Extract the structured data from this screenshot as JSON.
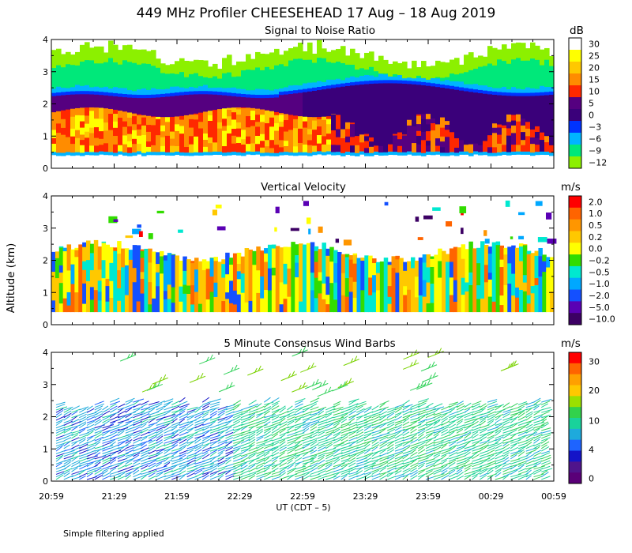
{
  "figure_title": "449 MHz Profiler CHEESEHEAD 17 Aug – 18 Aug 2019",
  "shared_y_axis_label": "Altitude (km)",
  "x_axis_label": "UT  (CDT – 5)",
  "x_tick_labels": [
    "20:59",
    "21:29",
    "21:59",
    "22:29",
    "22:59",
    "23:29",
    "23:59",
    "00:29",
    "00:59"
  ],
  "footnote": "Simple filtering applied",
  "chart_data": [
    {
      "type": "heatmap",
      "title": "Signal to Noise Ratio",
      "colorbar_unit": "dB",
      "colorbar_labels": [
        "30",
        "25",
        "20",
        "15",
        "10",
        "5",
        "0",
        "−3",
        "−6",
        "−9",
        "−12"
      ],
      "colorbar_colors": [
        "#ffffff",
        "#ffff00",
        "#ffc800",
        "#ff8c00",
        "#ff2800",
        "#550080",
        "#3a007a",
        "#0033ff",
        "#00b4ff",
        "#00e87a",
        "#8cf000"
      ],
      "ylim": [
        0,
        4
      ],
      "y_tick_labels": [
        "0",
        "1",
        "2",
        "3",
        "4"
      ],
      "time_range": [
        "20:59",
        "00:59"
      ],
      "layers_km": [
        {
          "from": 0.4,
          "to": 0.5,
          "dB": -6
        },
        {
          "from": 0.5,
          "to": 1.7,
          "dB": 15
        },
        {
          "from": 1.7,
          "to": 2.0,
          "dB": 5
        },
        {
          "from": 2.0,
          "to": 2.3,
          "dB": 0
        },
        {
          "from": 2.3,
          "to": 2.6,
          "dB": -6
        },
        {
          "from": 2.6,
          "to": 3.2,
          "dB": -9
        },
        {
          "from": 3.2,
          "to": 3.6,
          "dB": -12
        }
      ]
    },
    {
      "type": "heatmap",
      "title": "Vertical Velocity",
      "colorbar_unit": "m/s",
      "colorbar_labels": [
        "2.0",
        "1.0",
        "0.5",
        "0.2",
        "0.0",
        "−0.2",
        "−0.5",
        "−1.0",
        "−2.0",
        "−5.0",
        "−10.0"
      ],
      "colorbar_colors": [
        "#ff0000",
        "#ff6400",
        "#ff9600",
        "#ffc800",
        "#ffff00",
        "#32dc00",
        "#00e8d0",
        "#00a8ff",
        "#1450ff",
        "#5a00b4",
        "#3c0064"
      ],
      "ylim": [
        0,
        4
      ],
      "y_tick_labels": [
        "0",
        "1",
        "2",
        "3",
        "4"
      ],
      "time_range": [
        "20:59",
        "00:59"
      ],
      "data_top_km": 2.5,
      "dominant_values_m_s": [
        "0.0",
        "0.2",
        "−0.2",
        "−0.5",
        "−1.0"
      ]
    },
    {
      "type": "scatter",
      "title": "5 Minute Consensus Wind Barbs",
      "colorbar_unit": "m/s",
      "colorbar_labels": [
        "30",
        "20",
        "10",
        "4",
        "0"
      ],
      "colorbar_colors": [
        "#ff0000",
        "#ff6400",
        "#ffa000",
        "#ffc800",
        "#9be000",
        "#32d24b",
        "#19d29b",
        "#1eaadc",
        "#1e64ff",
        "#1414c8",
        "#50148c",
        "#5a0078"
      ],
      "ylim": [
        0,
        4
      ],
      "y_tick_labels": [
        "0",
        "1",
        "2",
        "3",
        "4"
      ],
      "time_range": [
        "20:59",
        "00:59"
      ],
      "barb_speed_range_m_s": [
        0,
        15
      ],
      "barb_top_km": 2.4
    }
  ]
}
